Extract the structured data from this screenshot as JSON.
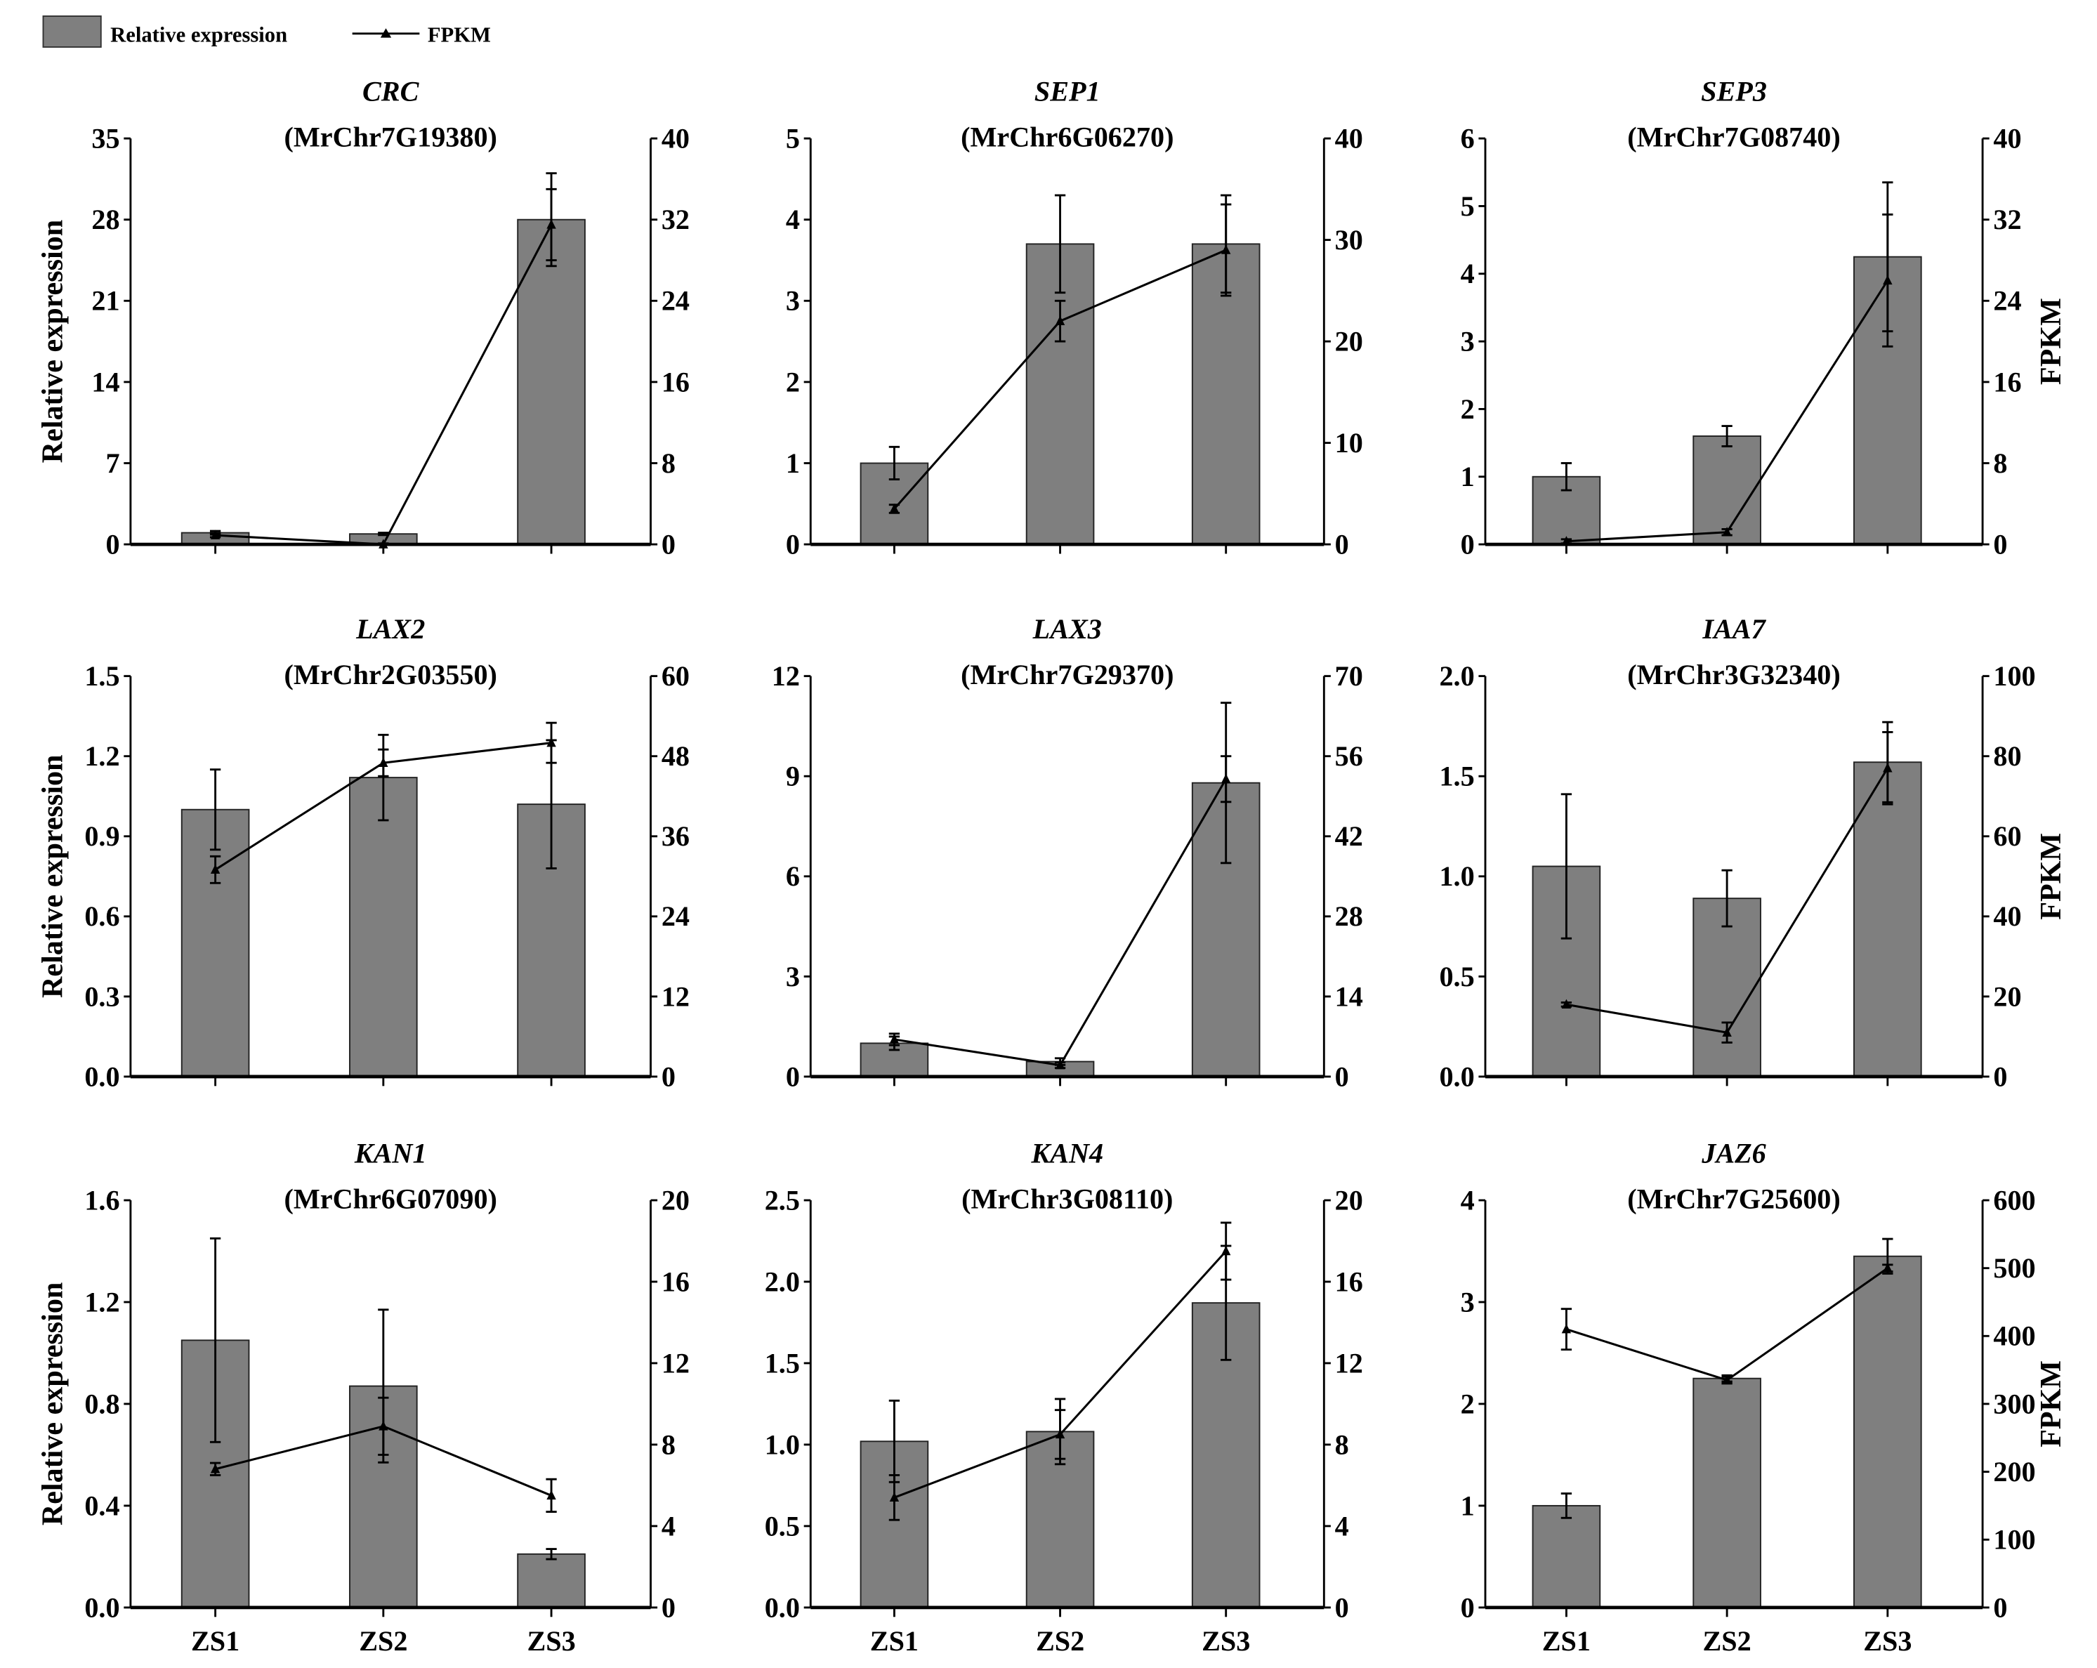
{
  "legend": {
    "bar_label": "Relative expression",
    "line_label": "FPKM"
  },
  "colors": {
    "bar": "#7f7f7f",
    "line": "#000000"
  },
  "chart_data": [
    {
      "type": "bar+line",
      "gene": "CRC",
      "id": "(MrChr7G19380)",
      "categories": [
        "ZS1",
        "ZS2",
        "ZS3"
      ],
      "ylabel": "Relative expression",
      "y2label": "",
      "ylim": [
        0,
        35
      ],
      "yticks": [
        0,
        7,
        14,
        21,
        28,
        35
      ],
      "y2lim": [
        0,
        40
      ],
      "y2ticks": [
        0,
        8,
        16,
        24,
        32,
        40
      ],
      "relative_expression": [
        1.0,
        0.9,
        28.0
      ],
      "relative_error": [
        0.15,
        0.1,
        4.0
      ],
      "fpkm": [
        0.9,
        0.0,
        31.5
      ],
      "fpkm_error": [
        0.2,
        0.1,
        3.5
      ],
      "show_xlabels": false
    },
    {
      "type": "bar+line",
      "gene": "SEP1",
      "id": "(MrChr6G06270)",
      "categories": [
        "ZS1",
        "ZS2",
        "ZS3"
      ],
      "ylabel": "",
      "y2label": "",
      "ylim": [
        0,
        5
      ],
      "yticks": [
        0,
        1,
        2,
        3,
        4,
        5
      ],
      "y2lim": [
        0,
        40
      ],
      "y2ticks": [
        0,
        10,
        20,
        30,
        40
      ],
      "relative_expression": [
        1.0,
        3.7,
        3.7
      ],
      "relative_error": [
        0.2,
        0.6,
        0.6
      ],
      "fpkm": [
        3.5,
        22.0,
        29.0
      ],
      "fpkm_error": [
        0.4,
        2.0,
        4.5
      ],
      "show_xlabels": false
    },
    {
      "type": "bar+line",
      "gene": "SEP3",
      "id": "(MrChr7G08740)",
      "categories": [
        "ZS1",
        "ZS2",
        "ZS3"
      ],
      "ylabel": "",
      "y2label": "FPKM",
      "ylim": [
        0,
        6
      ],
      "yticks": [
        0,
        1,
        2,
        3,
        4,
        5,
        6
      ],
      "y2lim": [
        0,
        40
      ],
      "y2ticks": [
        0,
        8,
        16,
        24,
        32,
        40
      ],
      "relative_expression": [
        1.0,
        1.6,
        4.25
      ],
      "relative_error": [
        0.2,
        0.15,
        1.1
      ],
      "fpkm": [
        0.3,
        1.2,
        26.0
      ],
      "fpkm_error": [
        0.2,
        0.3,
        6.5
      ],
      "show_xlabels": false
    },
    {
      "type": "bar+line",
      "gene": "LAX2",
      "id": "(MrChr2G03550)",
      "categories": [
        "ZS1",
        "ZS2",
        "ZS3"
      ],
      "ylabel": "Relative expression",
      "y2label": "",
      "ylim": [
        0,
        1.5
      ],
      "yticks": [
        "0.0",
        "0.3",
        "0.6",
        "0.9",
        "1.2",
        "1.5"
      ],
      "y2lim": [
        0,
        60
      ],
      "y2ticks": [
        0,
        12,
        24,
        36,
        48,
        60
      ],
      "relative_expression": [
        1.0,
        1.12,
        1.02
      ],
      "relative_error": [
        0.15,
        0.16,
        0.24
      ],
      "fpkm": [
        31.0,
        47.0,
        50.0
      ],
      "fpkm_error": [
        2.0,
        2.0,
        3.0
      ],
      "show_xlabels": false
    },
    {
      "type": "bar+line",
      "gene": "LAX3",
      "id": "(MrChr7G29370)",
      "categories": [
        "ZS1",
        "ZS2",
        "ZS3"
      ],
      "ylabel": "",
      "y2label": "",
      "ylim": [
        0,
        12
      ],
      "yticks": [
        0,
        3,
        6,
        9,
        12
      ],
      "y2lim": [
        0,
        70
      ],
      "y2ticks": [
        0,
        14,
        28,
        42,
        56,
        70
      ],
      "relative_expression": [
        1.0,
        0.45,
        8.8
      ],
      "relative_error": [
        0.2,
        0.1,
        2.4
      ],
      "fpkm": [
        6.5,
        2.0,
        52.0
      ],
      "fpkm_error": [
        1.0,
        0.5,
        4.0
      ],
      "show_xlabels": false
    },
    {
      "type": "bar+line",
      "gene": "IAA7",
      "id": "(MrChr3G32340)",
      "categories": [
        "ZS1",
        "ZS2",
        "ZS3"
      ],
      "ylabel": "",
      "y2label": "FPKM",
      "ylim": [
        0,
        2
      ],
      "yticks": [
        "0.0",
        "0.5",
        "1.0",
        "1.5",
        "2.0"
      ],
      "y2lim": [
        0,
        100
      ],
      "y2ticks": [
        0,
        20,
        40,
        60,
        80,
        100
      ],
      "relative_expression": [
        1.05,
        0.89,
        1.57
      ],
      "relative_error": [
        0.36,
        0.14,
        0.2
      ],
      "fpkm": [
        18.0,
        11.0,
        77.0
      ],
      "fpkm_error": [
        0.5,
        2.5,
        9.0
      ],
      "show_xlabels": false
    },
    {
      "type": "bar+line",
      "gene": "KAN1",
      "id": "(MrChr6G07090)",
      "categories": [
        "ZS1",
        "ZS2",
        "ZS3"
      ],
      "ylabel": "Relative expression",
      "y2label": "",
      "ylim": [
        0,
        1.6
      ],
      "yticks": [
        "0.0",
        "0.4",
        "0.8",
        "1.2",
        "1.6"
      ],
      "y2lim": [
        0,
        20
      ],
      "y2ticks": [
        0,
        4,
        8,
        12,
        16,
        20
      ],
      "relative_expression": [
        1.05,
        0.87,
        0.21
      ],
      "relative_error": [
        0.4,
        0.3,
        0.02
      ],
      "fpkm": [
        6.8,
        8.9,
        5.5
      ],
      "fpkm_error": [
        0.3,
        1.4,
        0.8
      ],
      "show_xlabels": true
    },
    {
      "type": "bar+line",
      "gene": "KAN4",
      "id": "(MrChr3G08110)",
      "categories": [
        "ZS1",
        "ZS2",
        "ZS3"
      ],
      "ylabel": "",
      "y2label": "",
      "ylim": [
        0,
        2.5
      ],
      "yticks": [
        "0.0",
        "0.5",
        "1.0",
        "1.5",
        "2.0",
        "2.5"
      ],
      "y2lim": [
        0,
        20
      ],
      "y2ticks": [
        0,
        4,
        8,
        12,
        16,
        20
      ],
      "relative_expression": [
        1.02,
        1.08,
        1.87
      ],
      "relative_error": [
        0.25,
        0.2,
        0.35
      ],
      "fpkm": [
        5.4,
        8.5,
        17.5
      ],
      "fpkm_error": [
        1.1,
        1.2,
        1.4
      ],
      "show_xlabels": true
    },
    {
      "type": "bar+line",
      "gene": "JAZ6",
      "id": "(MrChr7G25600)",
      "categories": [
        "ZS1",
        "ZS2",
        "ZS3"
      ],
      "ylabel": "",
      "y2label": "FPKM",
      "ylim": [
        0,
        4
      ],
      "yticks": [
        0,
        1,
        2,
        3,
        4
      ],
      "y2lim": [
        0,
        600
      ],
      "y2ticks": [
        0,
        100,
        200,
        300,
        400,
        500,
        600
      ],
      "relative_expression": [
        1.0,
        2.25,
        3.45
      ],
      "relative_error": [
        0.12,
        0.03,
        0.17
      ],
      "fpkm": [
        410,
        335,
        500
      ],
      "fpkm_error": [
        30,
        5,
        5
      ],
      "show_xlabels": true
    }
  ]
}
